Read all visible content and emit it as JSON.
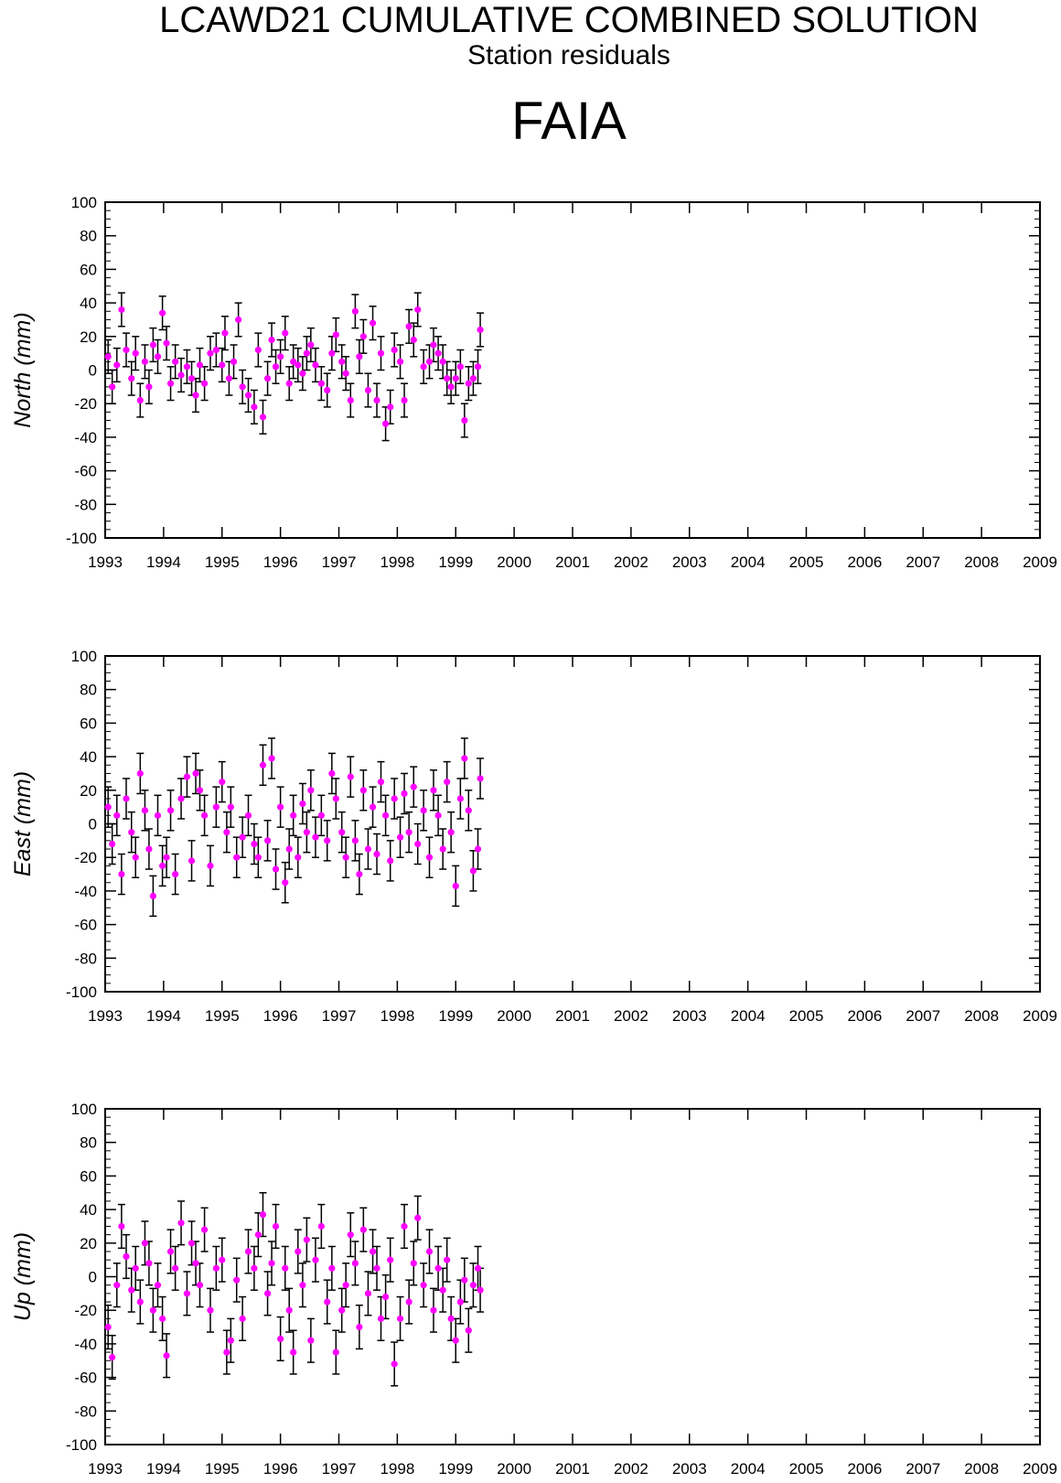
{
  "header": {
    "title": "LCAWD21 CUMULATIVE COMBINED SOLUTION",
    "subtitle": "Station residuals",
    "station": "FAIA"
  },
  "style": {
    "point_color": "#ff00ff",
    "error_color": "#000000"
  },
  "chart_data": [
    {
      "type": "scatter",
      "ylabel": "North (mm)",
      "xlim": [
        1993,
        2009
      ],
      "ylim": [
        -100,
        100
      ],
      "x_ticks": [
        "1993",
        "1994",
        "1995",
        "1996",
        "1997",
        "1998",
        "1999",
        "2000",
        "2001",
        "2002",
        "2003",
        "2004",
        "2005",
        "2006",
        "2007",
        "2008",
        "2009"
      ],
      "y_ticks": [
        "100",
        "80",
        "60",
        "40",
        "20",
        "0",
        "-20",
        "-40",
        "-60",
        "-80",
        "-100"
      ],
      "error_mm": 10,
      "x": [
        1993.05,
        1993.12,
        1993.2,
        1993.28,
        1993.36,
        1993.45,
        1993.52,
        1993.6,
        1993.68,
        1993.75,
        1993.82,
        1993.9,
        1993.98,
        1994.05,
        1994.12,
        1994.2,
        1994.3,
        1994.4,
        1994.48,
        1994.55,
        1994.62,
        1994.7,
        1994.8,
        1994.9,
        1995.0,
        1995.05,
        1995.12,
        1995.2,
        1995.28,
        1995.35,
        1995.45,
        1995.55,
        1995.62,
        1995.7,
        1995.78,
        1995.85,
        1995.92,
        1996.0,
        1996.08,
        1996.15,
        1996.22,
        1996.3,
        1996.38,
        1996.45,
        1996.52,
        1996.6,
        1996.7,
        1996.8,
        1996.88,
        1996.95,
        1997.05,
        1997.12,
        1997.2,
        1997.28,
        1997.35,
        1997.42,
        1997.5,
        1997.58,
        1997.65,
        1997.72,
        1997.8,
        1997.88,
        1997.95,
        1998.05,
        1998.12,
        1998.2,
        1998.28,
        1998.35,
        1998.45,
        1998.55,
        1998.62,
        1998.7,
        1998.78,
        1998.85,
        1998.92,
        1999.0,
        1999.08,
        1999.15,
        1999.22,
        1999.3,
        1999.38,
        1999.42
      ],
      "y": [
        8,
        -10,
        3,
        36,
        12,
        -5,
        10,
        -18,
        5,
        -10,
        15,
        8,
        34,
        16,
        -8,
        5,
        -3,
        2,
        -5,
        -15,
        3,
        -8,
        10,
        12,
        3,
        22,
        -5,
        5,
        30,
        -10,
        -15,
        -22,
        12,
        -28,
        -5,
        18,
        2,
        8,
        22,
        -8,
        5,
        3,
        -2,
        10,
        15,
        3,
        -8,
        -12,
        10,
        21,
        5,
        -2,
        -18,
        35,
        8,
        20,
        -12,
        28,
        -18,
        10,
        -32,
        -22,
        12,
        5,
        -18,
        26,
        18,
        36,
        2,
        5,
        15,
        10,
        5,
        -5,
        -10,
        -5,
        2,
        -30,
        -8,
        -5,
        2,
        24
      ]
    },
    {
      "type": "scatter",
      "ylabel": "East (mm)",
      "xlim": [
        1993,
        2009
      ],
      "ylim": [
        -100,
        100
      ],
      "x_ticks": [
        "1993",
        "1994",
        "1995",
        "1996",
        "1997",
        "1998",
        "1999",
        "2000",
        "2001",
        "2002",
        "2003",
        "2004",
        "2005",
        "2006",
        "2007",
        "2008",
        "2009"
      ],
      "y_ticks": [
        "100",
        "80",
        "60",
        "40",
        "20",
        "0",
        "-20",
        "-40",
        "-60",
        "-80",
        "-100"
      ],
      "error_mm": 12,
      "x": [
        1993.05,
        1993.12,
        1993.2,
        1993.28,
        1993.36,
        1993.45,
        1993.52,
        1993.6,
        1993.68,
        1993.75,
        1993.82,
        1993.9,
        1993.98,
        1994.05,
        1994.12,
        1994.2,
        1994.3,
        1994.4,
        1994.48,
        1994.55,
        1994.62,
        1994.7,
        1994.8,
        1994.9,
        1995.0,
        1995.08,
        1995.15,
        1995.25,
        1995.35,
        1995.45,
        1995.55,
        1995.62,
        1995.7,
        1995.78,
        1995.85,
        1995.92,
        1996.0,
        1996.08,
        1996.15,
        1996.22,
        1996.3,
        1996.38,
        1996.45,
        1996.52,
        1996.6,
        1996.7,
        1996.8,
        1996.88,
        1996.95,
        1997.05,
        1997.12,
        1997.2,
        1997.28,
        1997.35,
        1997.42,
        1997.5,
        1997.58,
        1997.65,
        1997.72,
        1997.8,
        1997.88,
        1997.95,
        1998.05,
        1998.12,
        1998.2,
        1998.28,
        1998.35,
        1998.45,
        1998.55,
        1998.62,
        1998.7,
        1998.78,
        1998.85,
        1998.92,
        1999.0,
        1999.08,
        1999.15,
        1999.22,
        1999.3,
        1999.38,
        1999.42
      ],
      "y": [
        10,
        -12,
        5,
        -30,
        15,
        -5,
        -20,
        30,
        8,
        -15,
        -43,
        5,
        -25,
        -20,
        8,
        -30,
        15,
        28,
        -22,
        30,
        20,
        5,
        -25,
        10,
        25,
        -5,
        10,
        -20,
        -8,
        5,
        -12,
        -20,
        35,
        -10,
        39,
        -27,
        10,
        -35,
        -15,
        5,
        -20,
        12,
        -5,
        20,
        -8,
        5,
        -10,
        30,
        15,
        -5,
        -20,
        28,
        -10,
        -30,
        20,
        -15,
        10,
        -18,
        25,
        5,
        -22,
        15,
        -8,
        18,
        -5,
        22,
        -12,
        8,
        -20,
        20,
        5,
        -15,
        25,
        -5,
        -37,
        15,
        39,
        8,
        -28,
        -15,
        27
      ]
    },
    {
      "type": "scatter",
      "ylabel": "Up (mm)",
      "xlim": [
        1993,
        2009
      ],
      "ylim": [
        -100,
        100
      ],
      "x_ticks": [
        "1993",
        "1994",
        "1995",
        "1996",
        "1997",
        "1998",
        "1999",
        "2000",
        "2001",
        "2002",
        "2003",
        "2004",
        "2005",
        "2006",
        "2007",
        "2008",
        "2009"
      ],
      "y_ticks": [
        "100",
        "80",
        "60",
        "40",
        "20",
        "0",
        "-20",
        "-40",
        "-60",
        "-80",
        "-100"
      ],
      "error_mm": 13,
      "x": [
        1993.05,
        1993.12,
        1993.2,
        1993.28,
        1993.36,
        1993.45,
        1993.52,
        1993.6,
        1993.68,
        1993.75,
        1993.82,
        1993.9,
        1993.98,
        1994.05,
        1994.12,
        1994.2,
        1994.3,
        1994.4,
        1994.48,
        1994.55,
        1994.62,
        1994.7,
        1994.8,
        1994.9,
        1995.0,
        1995.08,
        1995.15,
        1995.25,
        1995.35,
        1995.45,
        1995.55,
        1995.62,
        1995.7,
        1995.78,
        1995.85,
        1995.92,
        1996.0,
        1996.08,
        1996.15,
        1996.22,
        1996.3,
        1996.38,
        1996.45,
        1996.52,
        1996.6,
        1996.7,
        1996.8,
        1996.88,
        1996.95,
        1997.05,
        1997.12,
        1997.2,
        1997.28,
        1997.35,
        1997.42,
        1997.5,
        1997.58,
        1997.65,
        1997.72,
        1997.8,
        1997.88,
        1997.95,
        1998.05,
        1998.12,
        1998.2,
        1998.28,
        1998.35,
        1998.45,
        1998.55,
        1998.62,
        1998.7,
        1998.78,
        1998.85,
        1998.92,
        1999.0,
        1999.08,
        1999.15,
        1999.22,
        1999.3,
        1999.38,
        1999.42
      ],
      "y": [
        -30,
        -48,
        -5,
        30,
        12,
        -8,
        5,
        -15,
        20,
        8,
        -20,
        -5,
        -25,
        -47,
        15,
        5,
        32,
        -10,
        20,
        8,
        -5,
        28,
        -20,
        5,
        10,
        -45,
        -38,
        -2,
        -25,
        15,
        5,
        25,
        37,
        -10,
        8,
        30,
        -37,
        5,
        -20,
        -45,
        15,
        -5,
        22,
        -38,
        10,
        30,
        -15,
        5,
        -45,
        -20,
        -5,
        25,
        8,
        -30,
        28,
        -10,
        15,
        5,
        -25,
        -12,
        10,
        -52,
        -25,
        30,
        -15,
        8,
        35,
        -5,
        15,
        -20,
        5,
        -8,
        10,
        -25,
        -38,
        -15,
        -2,
        -32,
        -5,
        5,
        -8
      ]
    }
  ]
}
